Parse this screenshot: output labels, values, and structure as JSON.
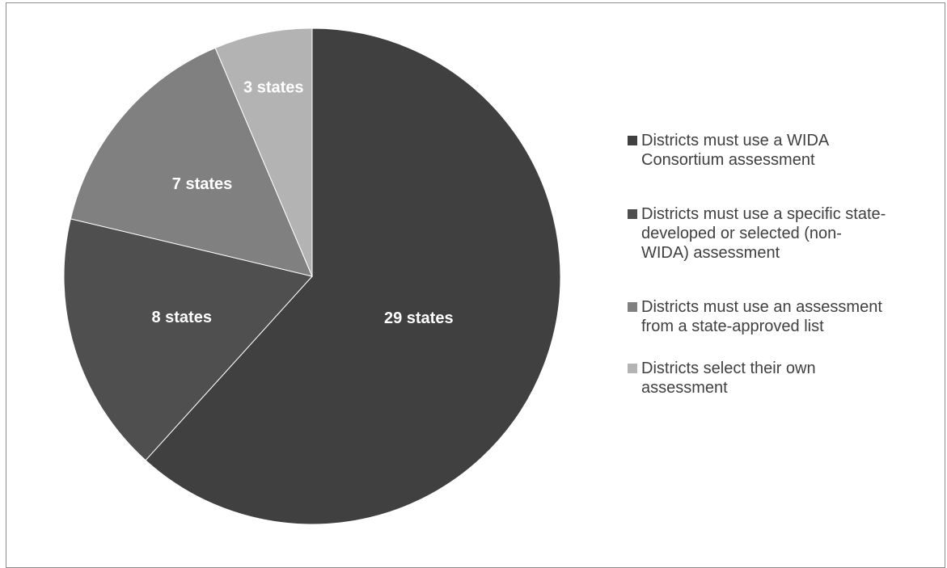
{
  "chart_data": {
    "type": "pie",
    "title": "",
    "start_angle_deg": 0,
    "direction": "clockwise",
    "legend_position": "right",
    "slices": [
      {
        "value": 29,
        "label": "29 states",
        "legend": "Districts must use a WIDA Consortium assessment",
        "legend_lines": [
          "Districts must use a WIDA",
          "Consortium assessment"
        ],
        "color": "#404040"
      },
      {
        "value": 8,
        "label": "8 states",
        "legend": "Districts must use a specific state-developed or selected (non-WIDA) assessment",
        "legend_lines": [
          "Districts must use a specific state-",
          "developed or selected (non-",
          "WIDA) assessment"
        ],
        "color": "#4f4f4f"
      },
      {
        "value": 7,
        "label": "7 states",
        "legend": "Districts must use an assessment from a state-approved list",
        "legend_lines": [
          "Districts must use an assessment",
          "from a state-approved list"
        ],
        "color": "#808080"
      },
      {
        "value": 3,
        "label": "3 states",
        "legend": "Districts select their own assessment",
        "legend_lines": [
          "Districts select their own",
          "assessment"
        ],
        "color": "#b3b3b3"
      }
    ]
  }
}
